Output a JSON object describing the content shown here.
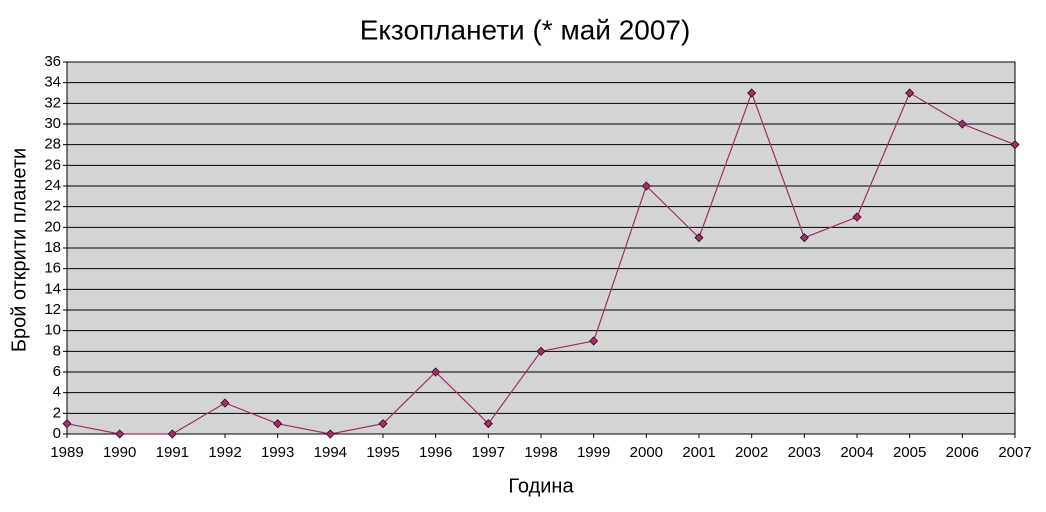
{
  "chart_data": {
    "type": "line",
    "title": "Екзопланети (* май 2007)",
    "x_label": "Година",
    "y_label": "Брой открити планети",
    "x": [
      1989,
      1990,
      1991,
      1992,
      1993,
      1994,
      1995,
      1996,
      1997,
      1998,
      1999,
      2000,
      2001,
      2002,
      2003,
      2004,
      2005,
      2006,
      2007
    ],
    "series": [
      {
        "color": "#993366",
        "values": [
          1,
          0,
          0,
          3,
          1,
          0,
          1,
          6,
          1,
          8,
          9,
          24,
          19,
          33,
          19,
          21,
          33,
          30,
          28
        ]
      }
    ],
    "xlim": [
      1989,
      2007
    ],
    "xticks": [
      1989,
      1990,
      1991,
      1992,
      1993,
      1994,
      1995,
      1996,
      1997,
      1998,
      1999,
      2000,
      2001,
      2002,
      2003,
      2004,
      2005,
      2006,
      2007
    ],
    "ylim": [
      0,
      36
    ],
    "yticks": [
      0,
      2,
      4,
      6,
      8,
      10,
      12,
      14,
      16,
      18,
      20,
      22,
      24,
      26,
      28,
      30,
      32,
      34,
      36
    ],
    "grid": true
  }
}
